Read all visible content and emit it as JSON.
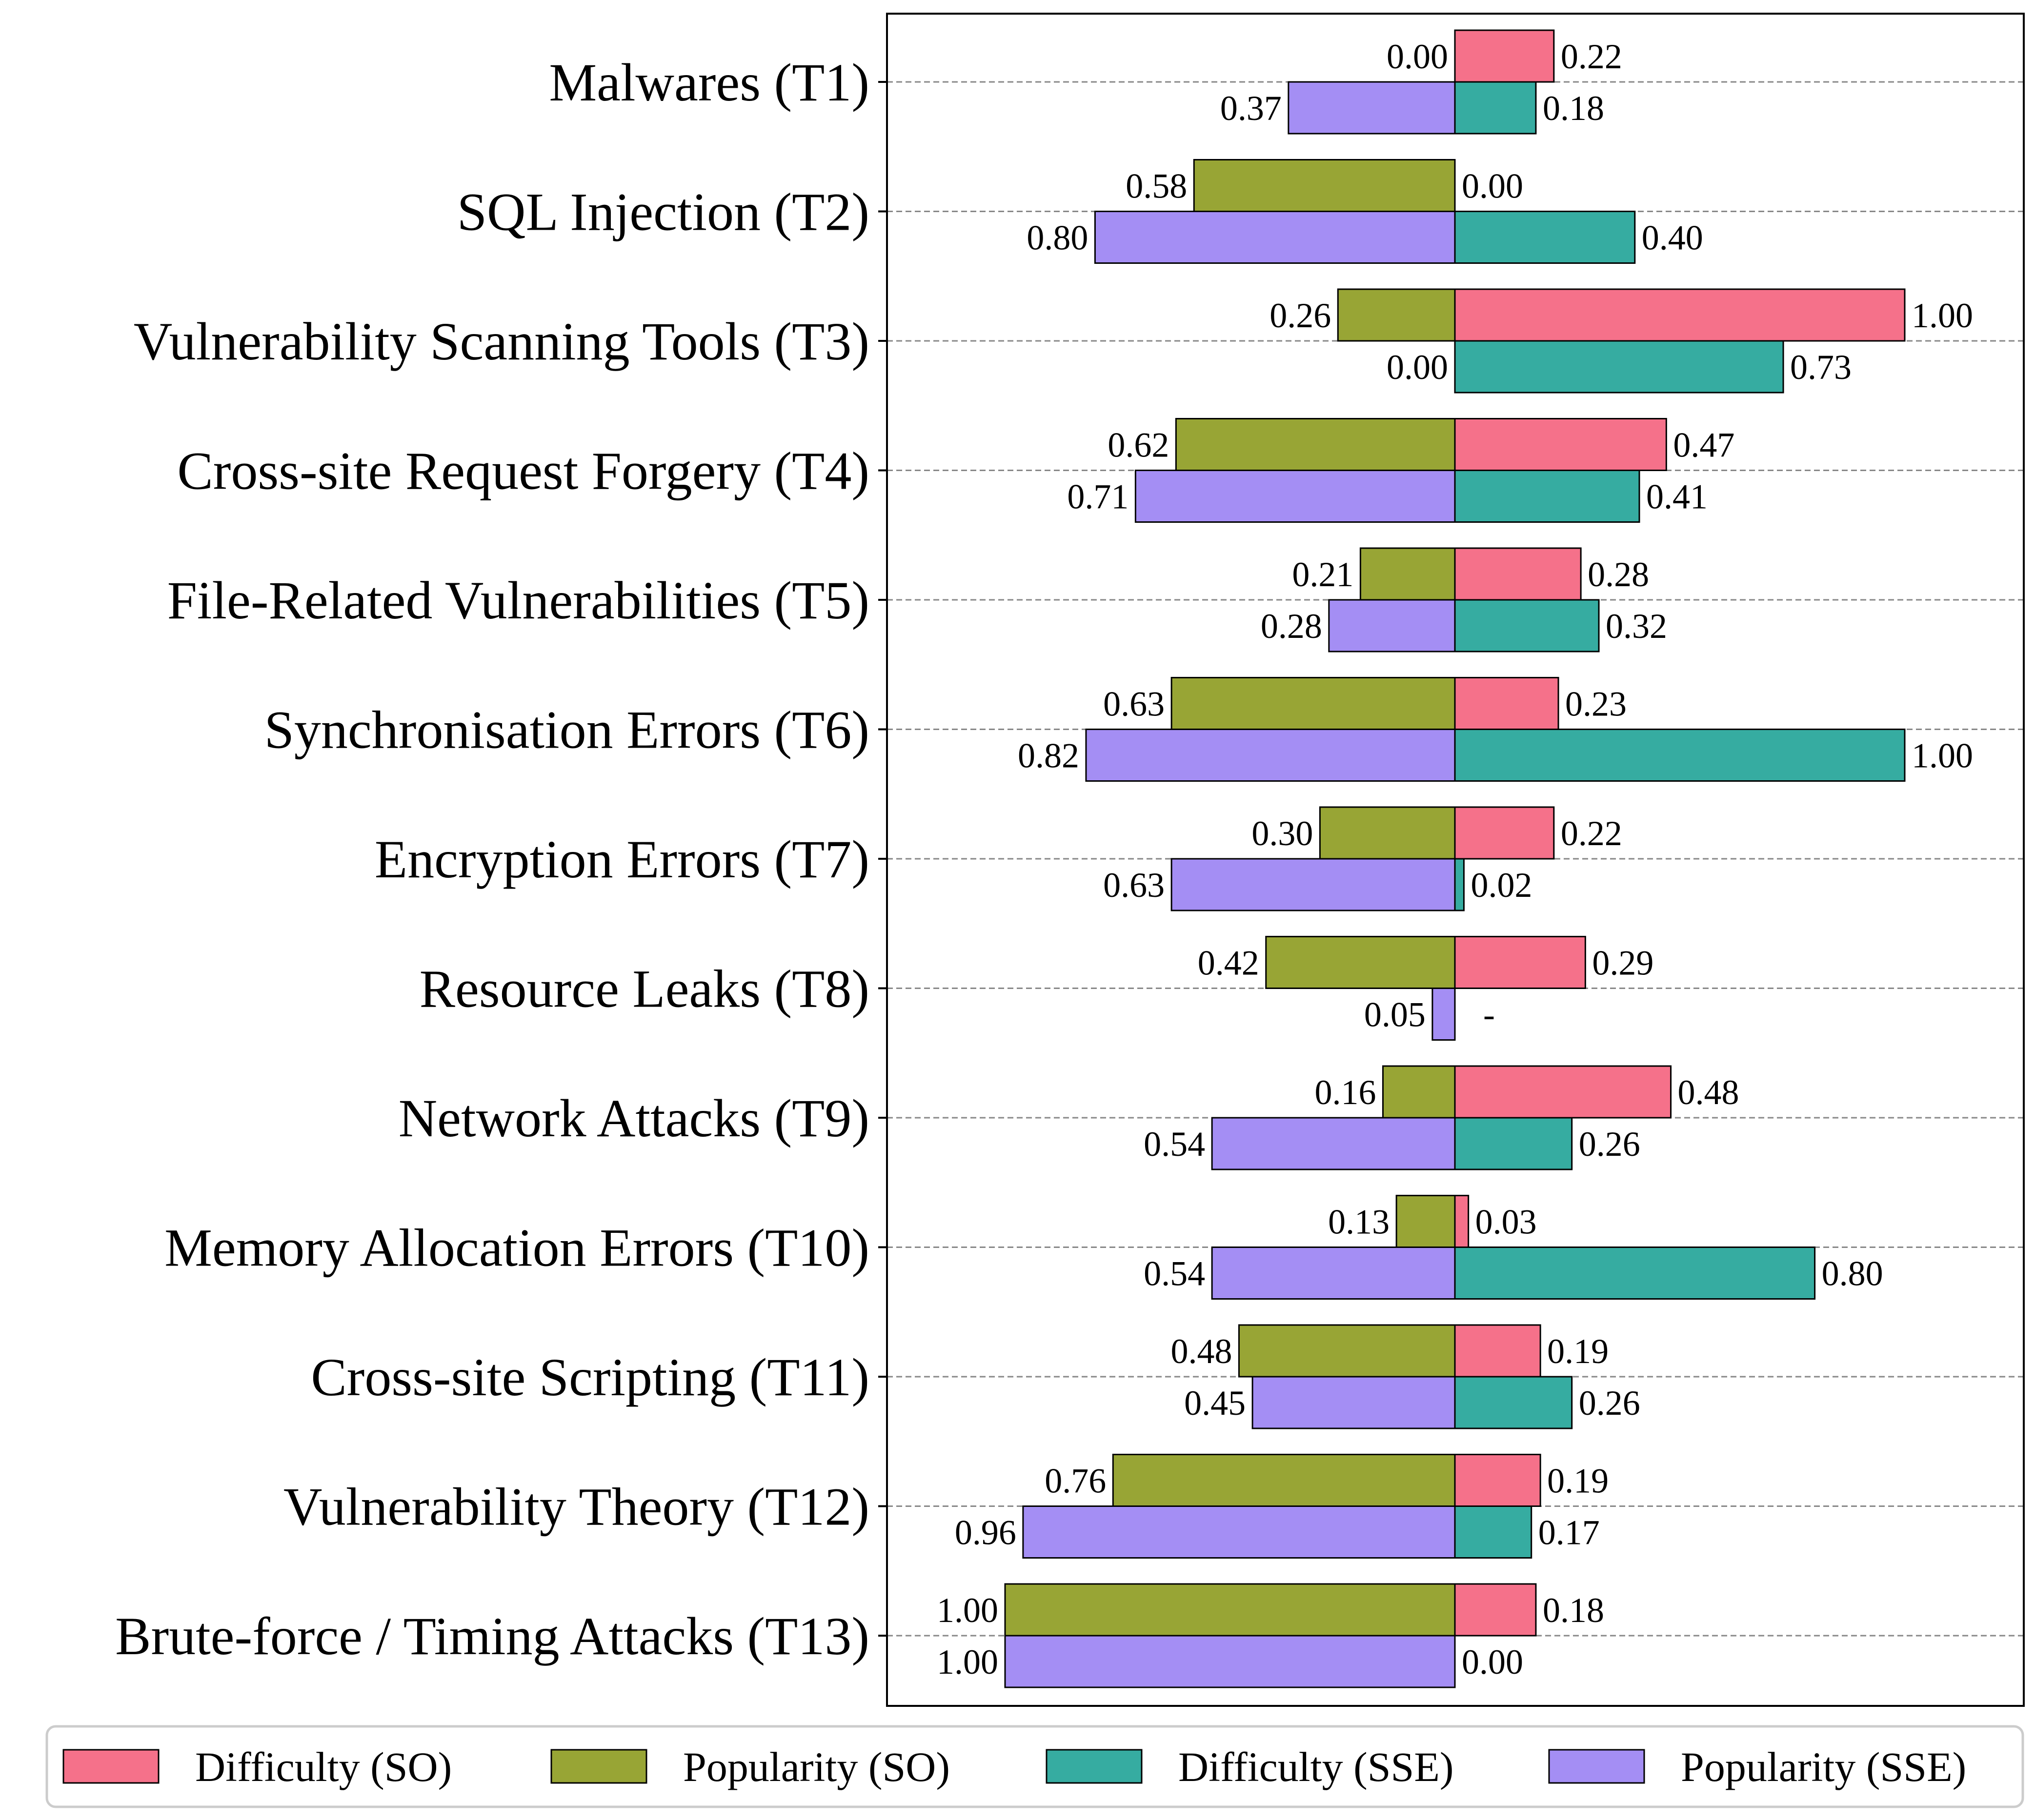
{
  "chart_data": {
    "type": "bar",
    "orientation": "horizontal-diverging",
    "title": "",
    "xlabel": "",
    "ylabel": "",
    "xlim": [
      -1.0,
      1.0
    ],
    "grid": "horizontal dashed at category centers",
    "legend_placement": "bottom",
    "categories": [
      "Malwares (T1)",
      "SQL Injection (T2)",
      "Vulnerability Scanning Tools (T3)",
      "Cross-site Request Forgery (T4)",
      "File-Related Vulnerabilities (T5)",
      "Synchronisation Errors (T6)",
      "Encryption Errors (T7)",
      "Resource Leaks (T8)",
      "Network Attacks (T9)",
      "Memory Allocation Errors (T10)",
      "Cross-site Scripting (T11)",
      "Vulnerability Theory (T12)",
      "Brute-force / Timing Attacks (T13)"
    ],
    "series": [
      {
        "name": "Difficulty (SO)",
        "color": "#f5718a",
        "side": "right",
        "row": "top",
        "values": [
          0.22,
          0.0,
          1.0,
          0.47,
          0.28,
          0.23,
          0.22,
          0.29,
          0.48,
          0.03,
          0.19,
          0.19,
          0.18
        ],
        "labels": [
          "0.22",
          "0.00",
          "1.00",
          "0.47",
          "0.28",
          "0.23",
          "0.22",
          "0.29",
          "0.48",
          "0.03",
          "0.19",
          "0.19",
          "0.18"
        ]
      },
      {
        "name": "Popularity (SO)",
        "color": "#98a535",
        "side": "left",
        "row": "top",
        "values": [
          0.0,
          0.58,
          0.26,
          0.62,
          0.21,
          0.63,
          0.3,
          0.42,
          0.16,
          0.13,
          0.48,
          0.76,
          1.0
        ],
        "labels": [
          "0.00",
          "0.58",
          "0.26",
          "0.62",
          "0.21",
          "0.63",
          "0.30",
          "0.42",
          "0.16",
          "0.13",
          "0.48",
          "0.76",
          "1.00"
        ]
      },
      {
        "name": "Difficulty (SSE)",
        "color": "#36aca1",
        "side": "right",
        "row": "bottom",
        "values": [
          0.18,
          0.4,
          0.73,
          0.41,
          0.32,
          1.0,
          0.02,
          null,
          0.26,
          0.8,
          0.26,
          0.17,
          0.0
        ],
        "labels": [
          "0.18",
          "0.40",
          "0.73",
          "0.41",
          "0.32",
          "1.00",
          "0.02",
          "-",
          "0.26",
          "0.80",
          "0.26",
          "0.17",
          "0.00"
        ]
      },
      {
        "name": "Popularity (SSE)",
        "color": "#a48ef4",
        "side": "left",
        "row": "bottom",
        "values": [
          0.37,
          0.8,
          0.0,
          0.71,
          0.28,
          0.82,
          0.63,
          0.05,
          0.54,
          0.54,
          0.45,
          0.96,
          1.0
        ],
        "labels": [
          "0.37",
          "0.80",
          "0.00",
          "0.71",
          "0.28",
          "0.82",
          "0.63",
          "0.05",
          "0.54",
          "0.54",
          "0.45",
          "0.96",
          "1.00"
        ]
      }
    ],
    "zero_label_side_override": [
      {
        "category_index": 2,
        "series": "Popularity (SSE)",
        "label_drawn": "left"
      },
      {
        "category_index": 12,
        "series": "Difficulty (SSE)",
        "label_drawn": "right"
      }
    ]
  }
}
